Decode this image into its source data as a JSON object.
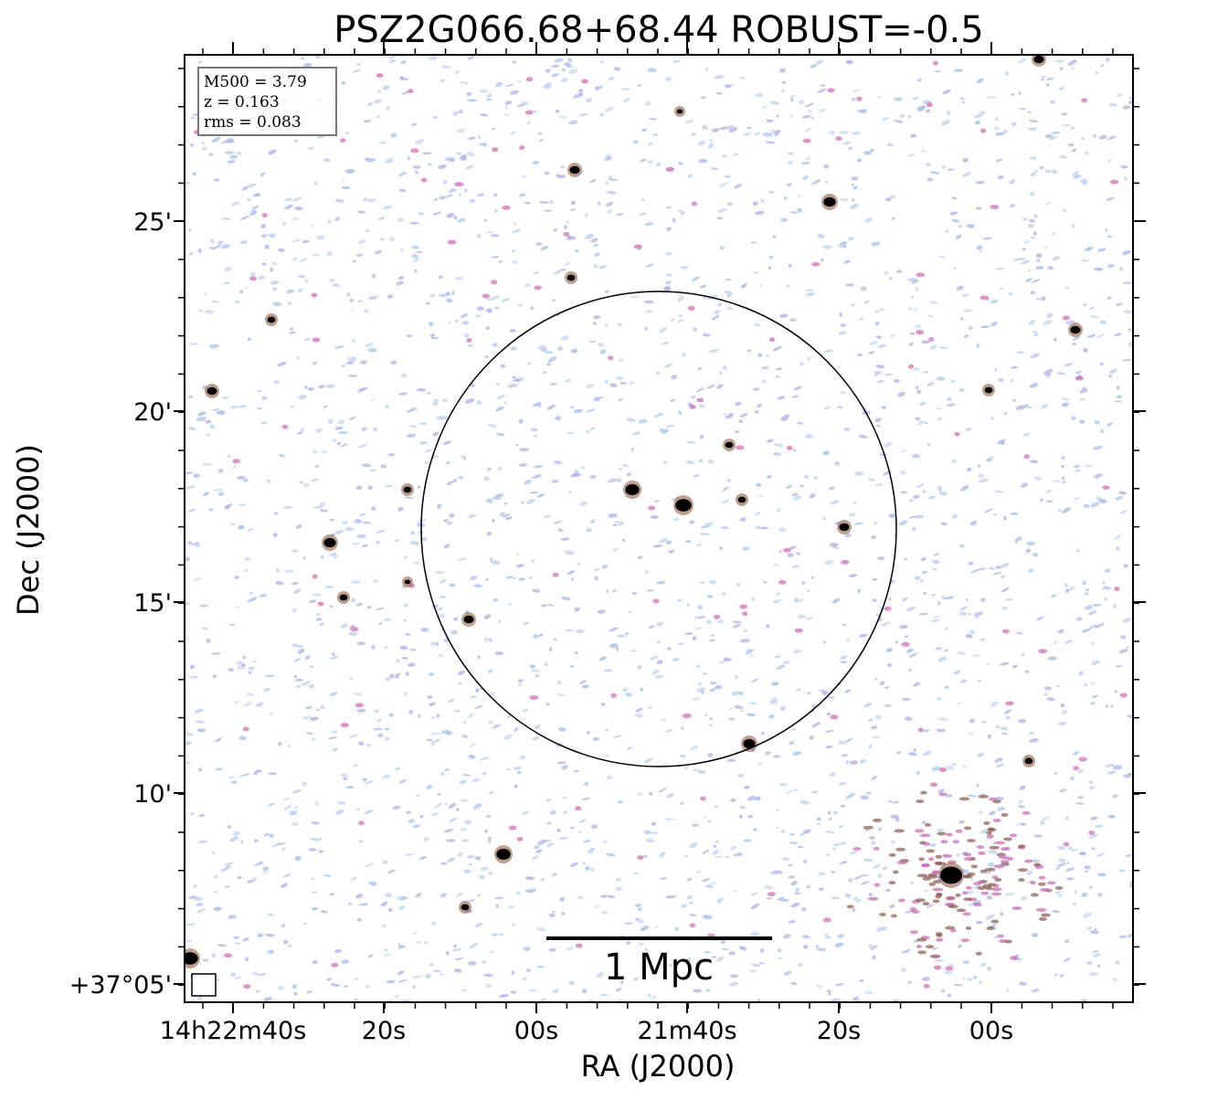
{
  "title": "PSZ2G066.68+68.44 ROBUST=-0.5",
  "x_axis": {
    "label": "RA (J2000)",
    "ticks": [
      "14h22m40s",
      "20s",
      "00s",
      "21m40s",
      "20s",
      "00s"
    ]
  },
  "y_axis": {
    "label": "Dec (J2000)",
    "ticks": [
      "25'",
      "20'",
      "15'",
      "10'",
      "+37°05'"
    ]
  },
  "info_box": [
    "M500 = 3.79",
    "z = 0.163",
    "rms = 0.083"
  ],
  "scale_bar": "1 Mpc"
}
